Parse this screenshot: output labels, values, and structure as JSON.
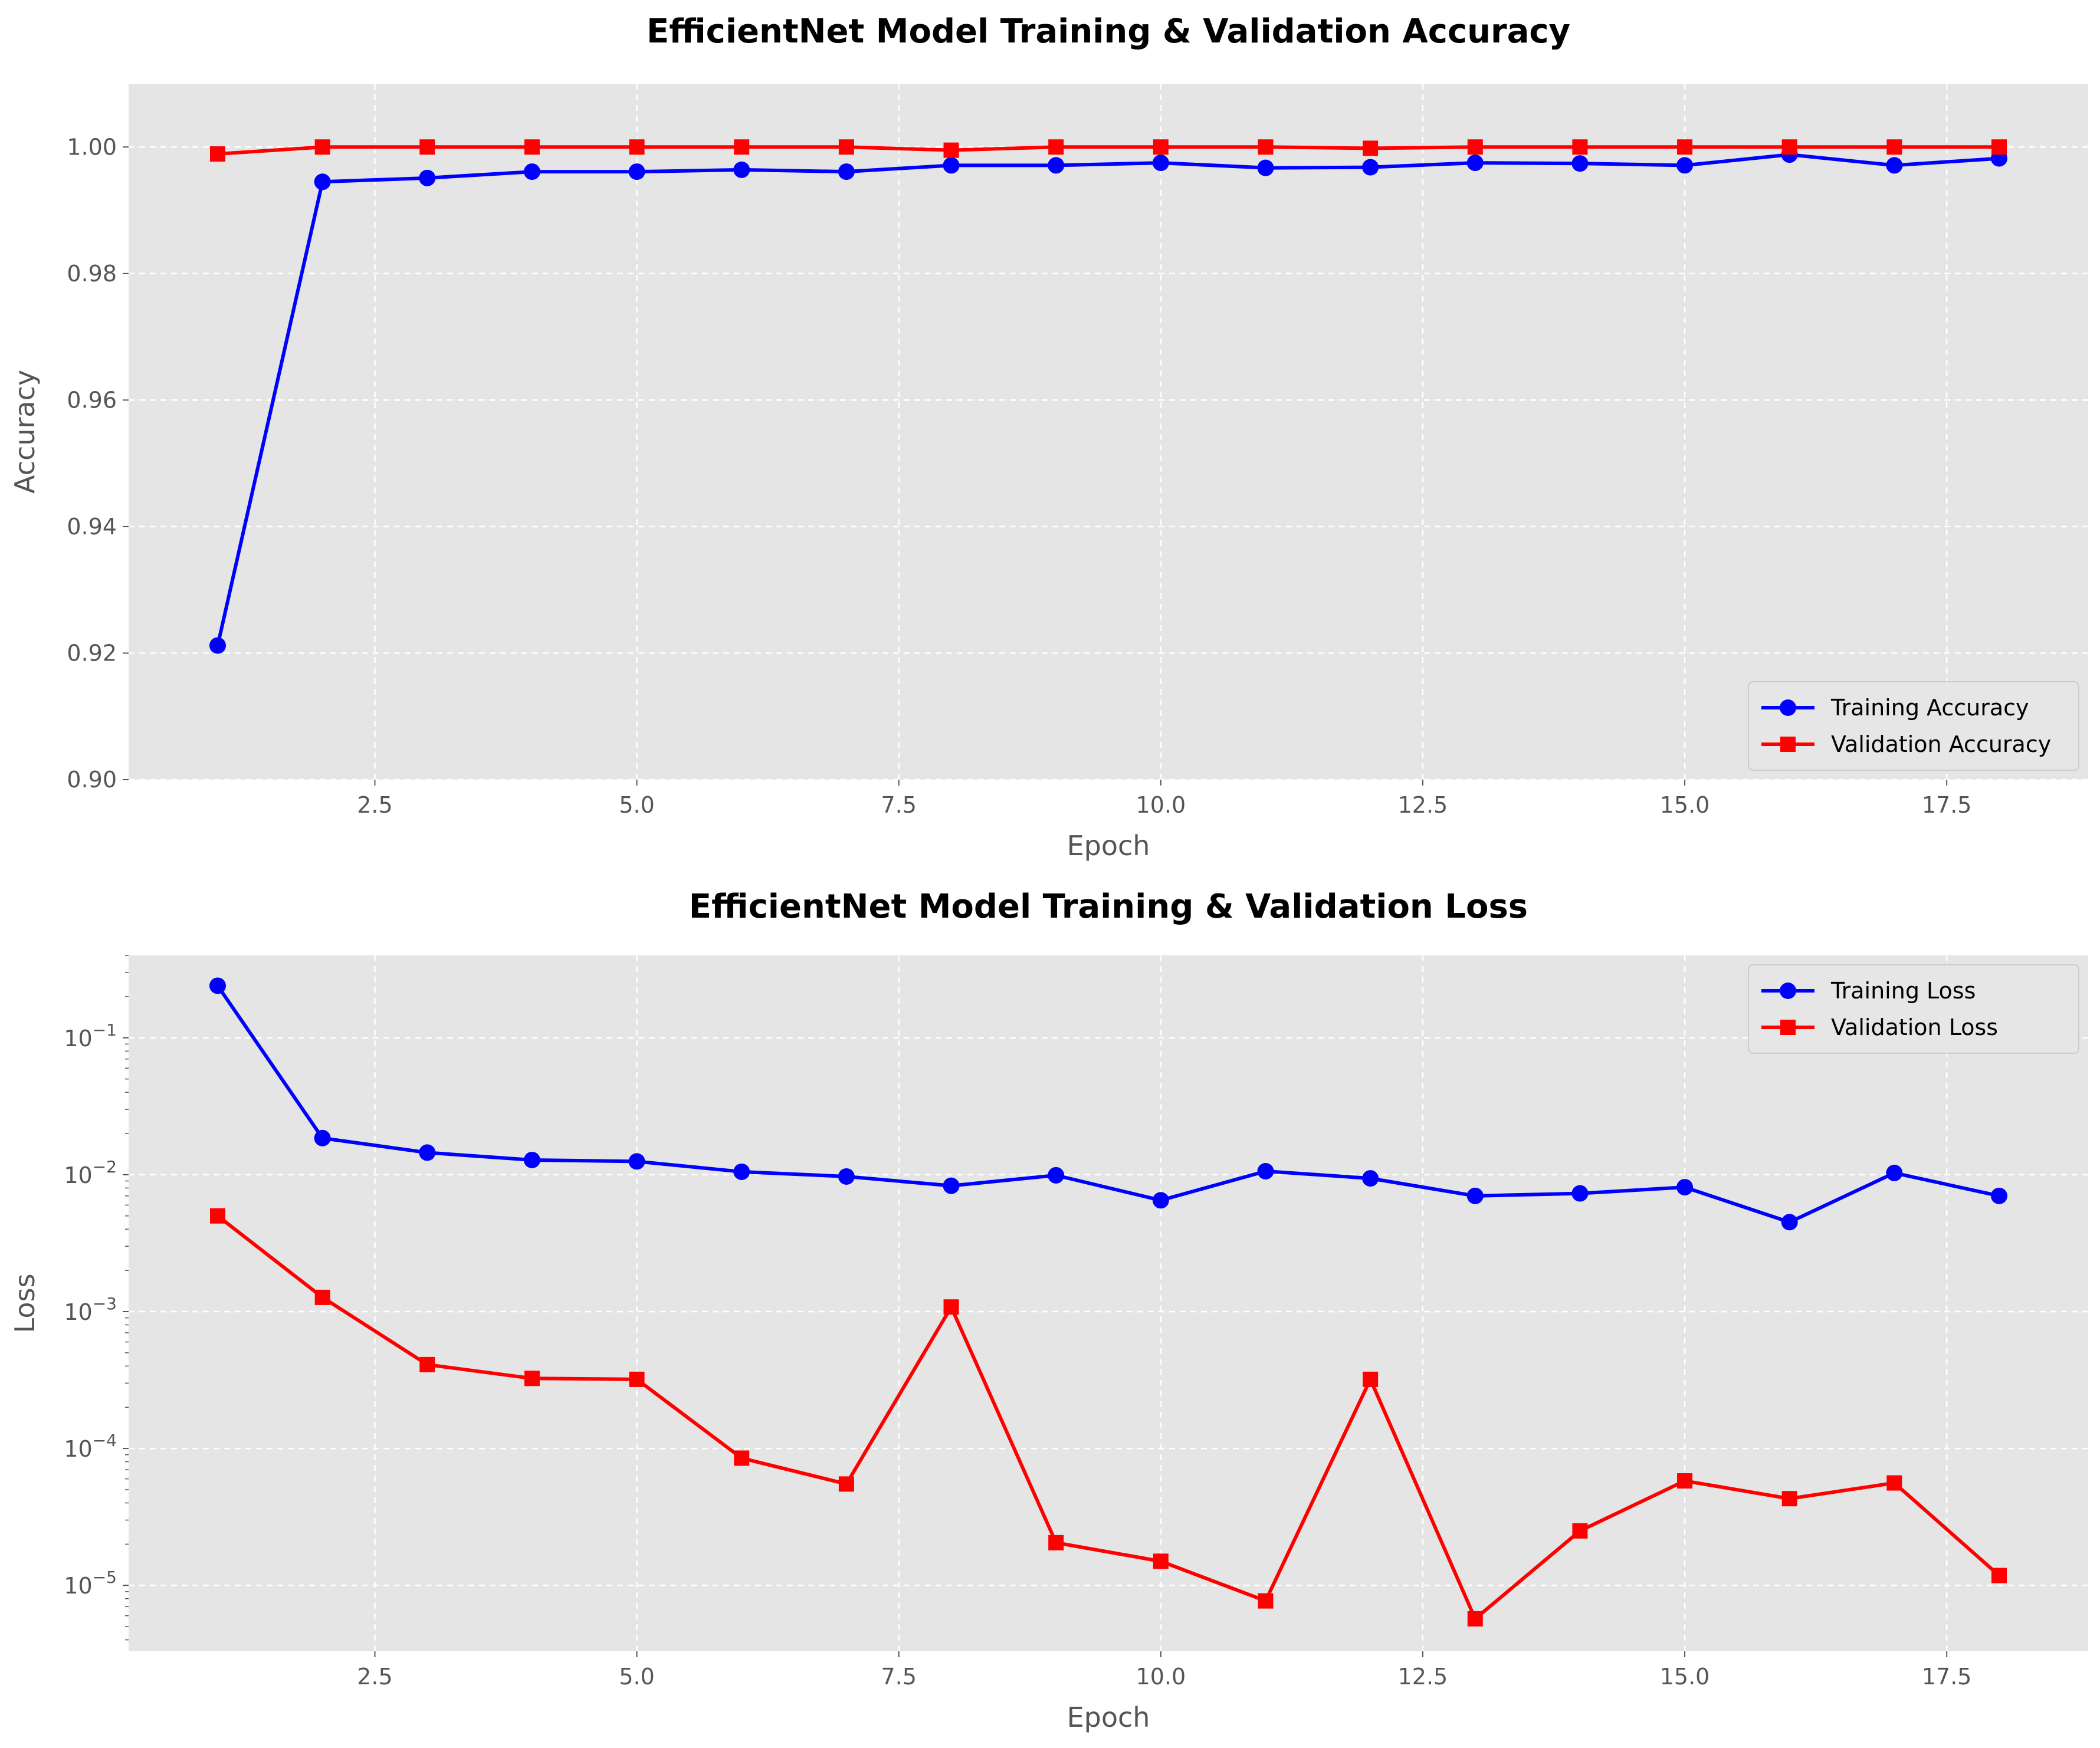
{
  "chart_data": [
    {
      "type": "line",
      "title": "EfficientNet Model Training & Validation Accuracy",
      "xlabel": "Epoch",
      "ylabel": "Accuracy",
      "yscale": "linear",
      "xlim": [
        0.15,
        18.85
      ],
      "ylim": [
        0.9,
        1.01
      ],
      "grid": true,
      "legend_position": "lower right",
      "x_ticks": [
        2.5,
        5.0,
        7.5,
        10.0,
        12.5,
        15.0,
        17.5
      ],
      "x_tick_labels": [
        "2.5",
        "5.0",
        "7.5",
        "10.0",
        "12.5",
        "15.0",
        "17.5"
      ],
      "y_ticks": [
        0.9,
        0.92,
        0.94,
        0.96,
        0.98,
        1.0
      ],
      "y_tick_labels": [
        "0.90",
        "0.92",
        "0.94",
        "0.96",
        "0.98",
        "1.00"
      ],
      "x": [
        1,
        2,
        3,
        4,
        5,
        6,
        7,
        8,
        9,
        10,
        11,
        12,
        13,
        14,
        15,
        16,
        17,
        18
      ],
      "series": [
        {
          "name": "Training Accuracy",
          "color": "#0000ff",
          "marker": "circle",
          "values": [
            0.9212,
            0.9945,
            0.9951,
            0.9961,
            0.9961,
            0.9964,
            0.9961,
            0.9971,
            0.9971,
            0.9975,
            0.9967,
            0.9968,
            0.9975,
            0.9974,
            0.9971,
            0.9988,
            0.9971,
            0.9982
          ]
        },
        {
          "name": "Validation Accuracy",
          "color": "#ff0000",
          "marker": "square",
          "values": [
            0.9989,
            1.0,
            1.0,
            1.0,
            1.0,
            1.0,
            1.0,
            0.9995,
            1.0,
            1.0,
            1.0,
            0.9998,
            1.0,
            1.0,
            1.0,
            1.0,
            1.0,
            1.0
          ]
        }
      ]
    },
    {
      "type": "line",
      "title": "EfficientNet Model Training & Validation Loss",
      "xlabel": "Epoch",
      "ylabel": "Loss",
      "yscale": "log",
      "xlim": [
        0.15,
        18.85
      ],
      "ylim": [
        3.3e-06,
        0.4
      ],
      "grid": true,
      "legend_position": "upper right",
      "x_ticks": [
        2.5,
        5.0,
        7.5,
        10.0,
        12.5,
        15.0,
        17.5
      ],
      "x_tick_labels": [
        "2.5",
        "5.0",
        "7.5",
        "10.0",
        "12.5",
        "15.0",
        "17.5"
      ],
      "y_ticks": [
        1e-05,
        0.0001,
        0.001,
        0.01,
        0.1
      ],
      "y_tick_exponents": [
        "−5",
        "−4",
        "−3",
        "−2",
        "−1"
      ],
      "y_tick_base": "10",
      "x": [
        1,
        2,
        3,
        4,
        5,
        6,
        7,
        8,
        9,
        10,
        11,
        12,
        13,
        14,
        15,
        16,
        17,
        18
      ],
      "series": [
        {
          "name": "Training Loss",
          "color": "#0000ff",
          "marker": "circle",
          "values": [
            0.24,
            0.0185,
            0.0145,
            0.0128,
            0.0125,
            0.0105,
            0.0097,
            0.0083,
            0.0099,
            0.0065,
            0.0106,
            0.0094,
            0.007,
            0.0073,
            0.0081,
            0.0045,
            0.0103,
            0.007
          ]
        },
        {
          "name": "Validation Loss",
          "color": "#ff0000",
          "marker": "square",
          "values": [
            0.005,
            0.00127,
            0.00041,
            0.000325,
            0.00032,
            8.5e-05,
            5.5e-05,
            0.00108,
            2.05e-05,
            1.5e-05,
            7.7e-06,
            0.00032,
            5.7e-06,
            2.5e-05,
            5.8e-05,
            4.3e-05,
            5.6e-05,
            1.18e-05
          ]
        }
      ]
    }
  ]
}
